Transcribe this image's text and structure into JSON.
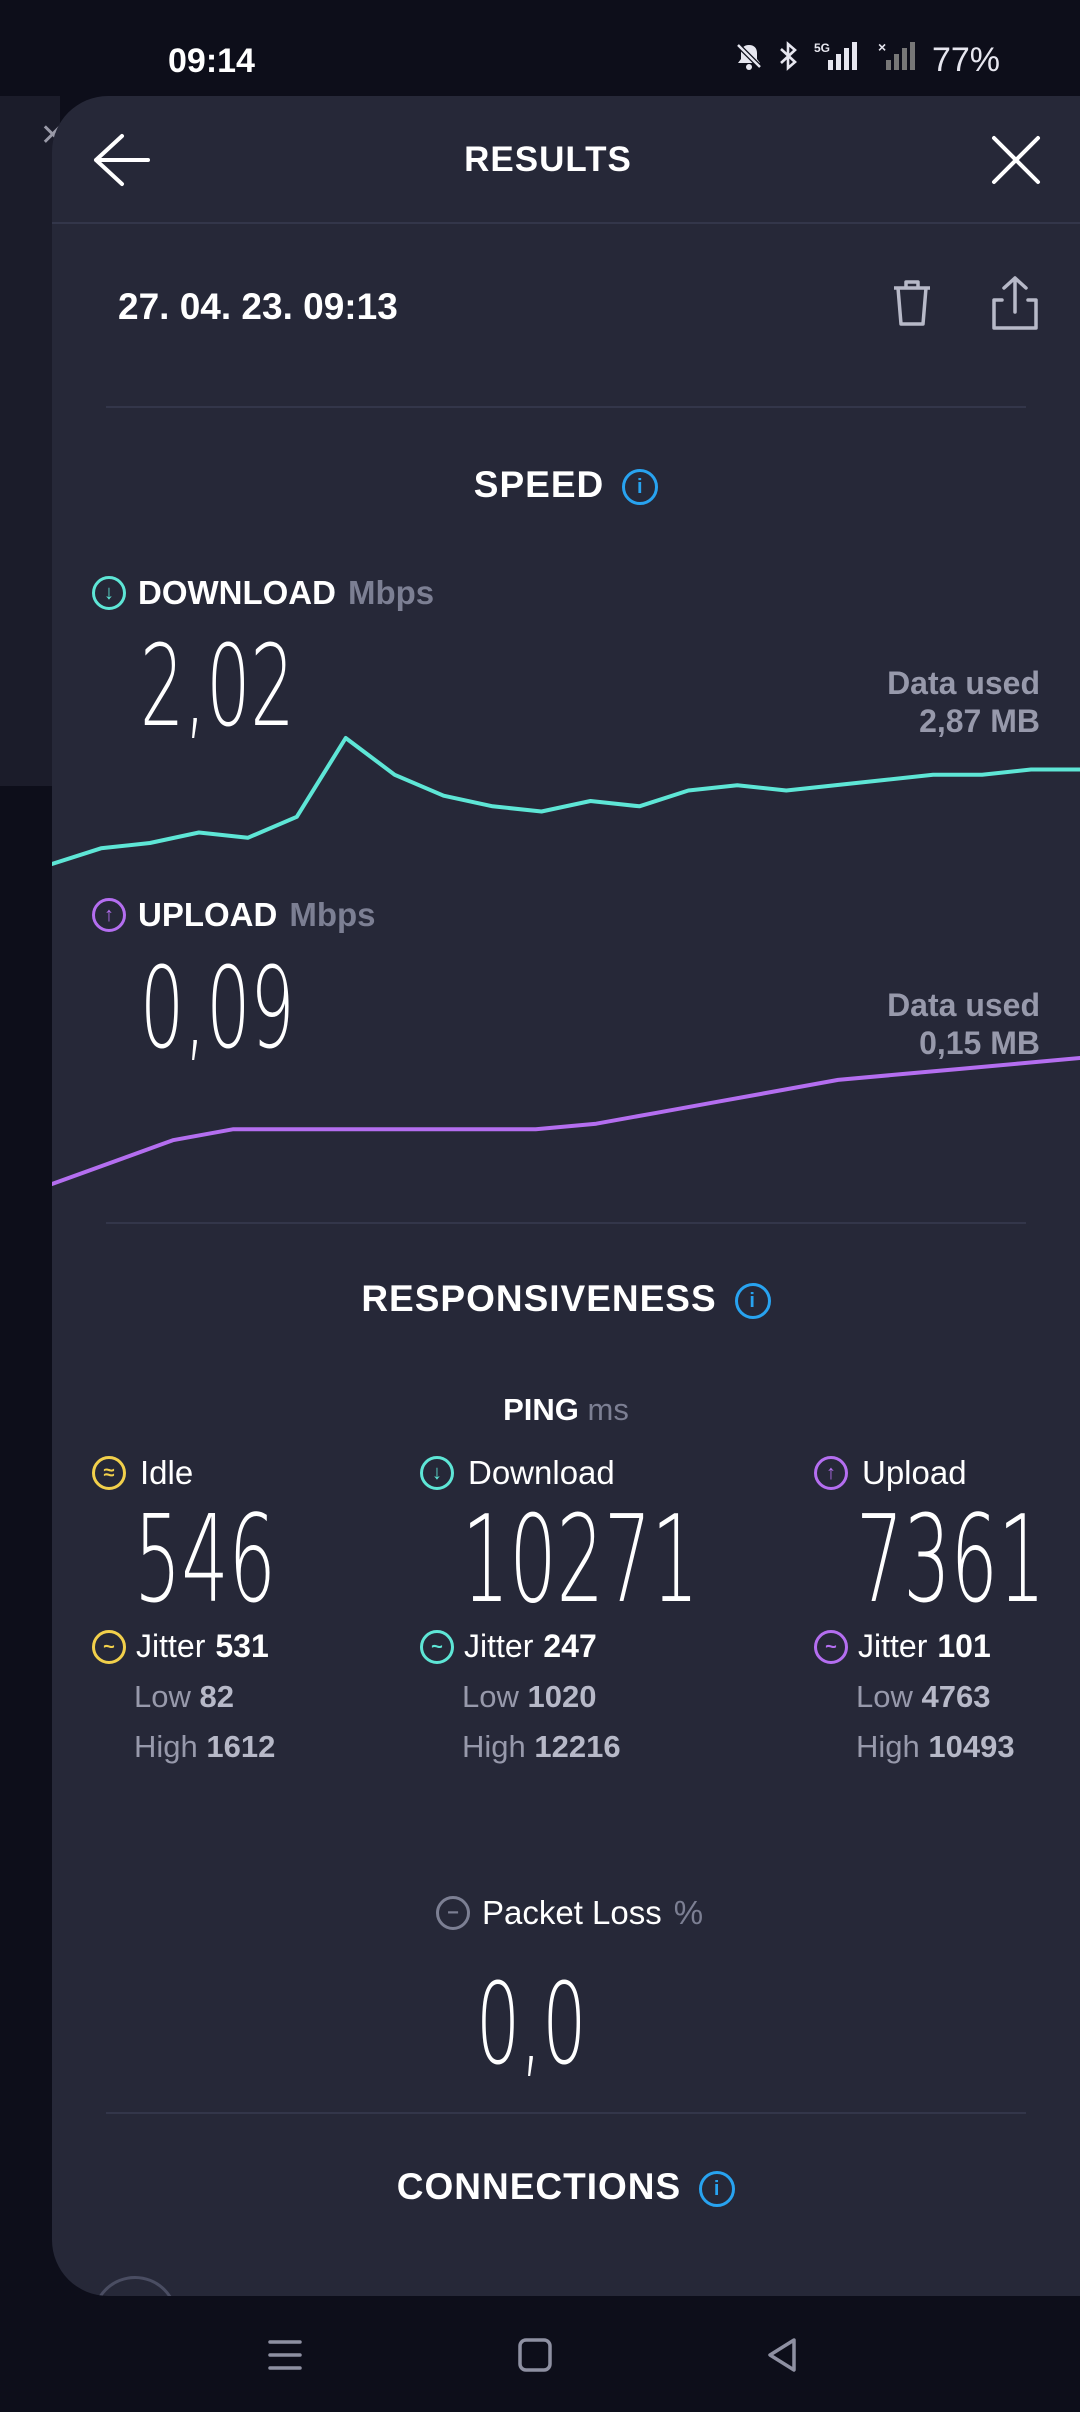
{
  "status_bar": {
    "time": "09:14",
    "battery": "77%",
    "icons": [
      "mute-icon",
      "bluetooth-icon",
      "5g-signal-icon",
      "signal-icon"
    ],
    "network_label": "5G"
  },
  "header": {
    "title": "RESULTS"
  },
  "result": {
    "date": "27. 04. 23. 09:13"
  },
  "speed": {
    "title": "SPEED",
    "download": {
      "label": "DOWNLOAD",
      "unit": "Mbps",
      "value": "2,02",
      "data_used_label": "Data used",
      "data_used_value": "2,87 MB",
      "color": "#5ee6d6"
    },
    "upload": {
      "label": "UPLOAD",
      "unit": "Mbps",
      "value": "0,09",
      "data_used_label": "Data used",
      "data_used_value": "0,15 MB",
      "color": "#b46ef0"
    }
  },
  "chart_data": [
    {
      "type": "line",
      "series": [
        {
          "values": [
            0.0,
            0.3,
            0.4,
            0.6,
            0.5,
            0.9,
            2.4,
            1.7,
            1.3,
            1.1,
            1.0,
            1.2,
            1.1,
            1.4,
            1.5,
            1.4,
            1.5,
            1.6,
            1.7,
            1.7,
            1.8,
            1.8
          ]
        }
      ]
    },
    {
      "type": "line",
      "series": [
        {
          "values": [
            0.0,
            0.4,
            0.8,
            1.0,
            1.0,
            1.0,
            1.0,
            1.0,
            1.0,
            1.1,
            1.3,
            1.5,
            1.7,
            1.9,
            2.0,
            2.1,
            2.2,
            2.3
          ]
        }
      ]
    }
  ],
  "responsiveness": {
    "title": "RESPONSIVENESS",
    "ping_label": "PING",
    "ping_unit": "ms",
    "jitter_label": "Jitter",
    "low_label": "Low",
    "high_label": "High",
    "columns": [
      {
        "label": "Idle",
        "value": "546",
        "jitter": "531",
        "low": "82",
        "high": "1612",
        "color": "#f2d04b"
      },
      {
        "label": "Download",
        "value": "10271",
        "jitter": "247",
        "low": "1020",
        "high": "12216",
        "color": "#5ee6d6"
      },
      {
        "label": "Upload",
        "value": "7361",
        "jitter": "101",
        "low": "4763",
        "high": "10493",
        "color": "#b46ef0"
      }
    ]
  },
  "packet_loss": {
    "label": "Packet Loss",
    "unit": "%",
    "value": "0,0"
  },
  "connections": {
    "title": "CONNECTIONS"
  }
}
